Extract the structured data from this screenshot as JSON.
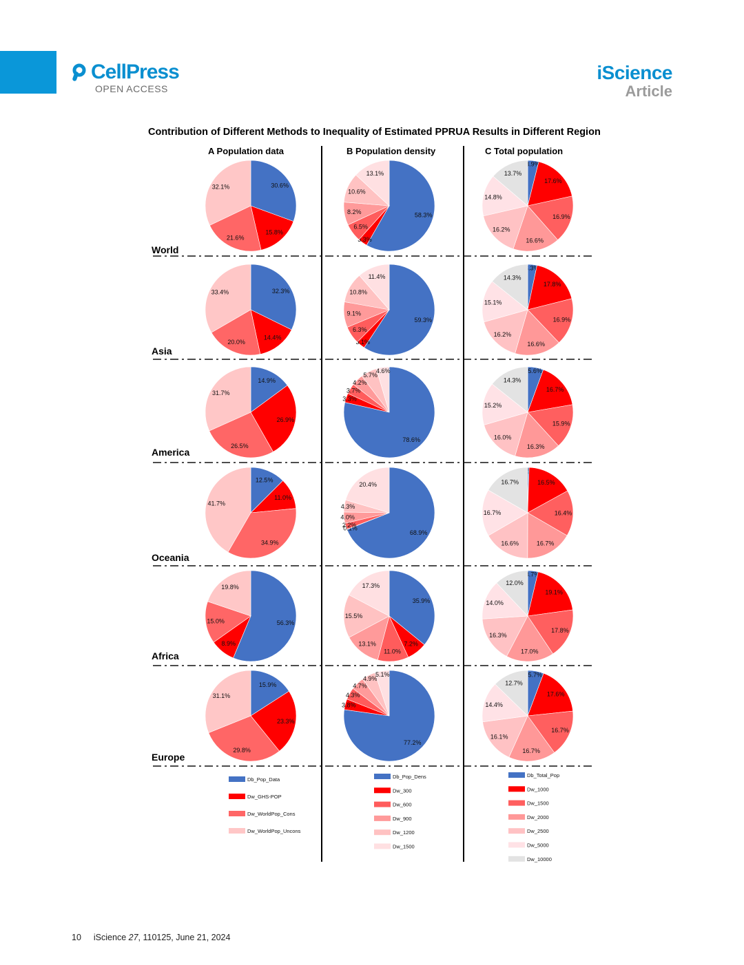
{
  "journal": {
    "brand": "CellPress",
    "access": "OPEN ACCESS",
    "name": "iScience",
    "type": "Article"
  },
  "footer": {
    "page": "10",
    "citation_prefix": "iScience ",
    "volume": "27",
    "citation_rest": ", 110125, June 21, 2024"
  },
  "figure": {
    "title": "Contribution of Different Methods to Inequality of Estimated PPRUA Results in Different Region"
  },
  "chart_data": [
    {
      "type": "pie",
      "panel": "A",
      "title": "Population data",
      "legend_position": "bottom",
      "series_names": [
        "Db_Pop_Data",
        "Dw_GHS-POP",
        "Dw_WorldPop_Cons",
        "Dw_WorldPop_Uncons"
      ],
      "colors": [
        "#4472c4",
        "#ff0000",
        "#ff6666",
        "#ffc7c7"
      ],
      "regions": [
        {
          "region": "World",
          "values": [
            30.6,
            15.8,
            21.6,
            32.1
          ]
        },
        {
          "region": "Asia",
          "values": [
            32.3,
            14.4,
            20.0,
            33.4
          ]
        },
        {
          "region": "America",
          "values": [
            14.9,
            26.9,
            26.5,
            31.7
          ]
        },
        {
          "region": "Oceania",
          "values": [
            12.5,
            11.0,
            34.9,
            41.7
          ]
        },
        {
          "region": "Africa",
          "values": [
            56.3,
            8.9,
            15.0,
            19.8
          ]
        },
        {
          "region": "Europe",
          "values": [
            15.9,
            23.3,
            29.8,
            31.1
          ]
        }
      ]
    },
    {
      "type": "pie",
      "panel": "B",
      "title": "Population density",
      "legend_position": "bottom",
      "series_names": [
        "Db_Pop_Dens",
        "Dw_300",
        "Dw_600",
        "Dw_900",
        "Dw_1200",
        "Dw_1500"
      ],
      "colors": [
        "#4472c4",
        "#ff0000",
        "#ff5c5c",
        "#ff9a9a",
        "#ffc2c2",
        "#ffe0e2"
      ],
      "regions": [
        {
          "region": "World",
          "values": [
            58.3,
            3.3,
            6.5,
            8.2,
            10.6,
            13.1
          ]
        },
        {
          "region": "Asia",
          "values": [
            59.3,
            3.1,
            6.3,
            9.1,
            10.8,
            11.4
          ]
        },
        {
          "region": "America",
          "values": [
            78.6,
            3.3,
            3.7,
            4.2,
            5.7,
            4.6
          ]
        },
        {
          "region": "Oceania",
          "values": [
            68.9,
            0.1,
            2.2,
            4.0,
            4.3,
            20.4
          ]
        },
        {
          "region": "Africa",
          "values": [
            35.9,
            7.2,
            11.0,
            13.1,
            15.5,
            17.3
          ]
        },
        {
          "region": "Europe",
          "values": [
            77.2,
            3.8,
            4.3,
            4.7,
            4.9,
            5.1
          ]
        }
      ]
    },
    {
      "type": "pie",
      "panel": "C",
      "title": "Total population",
      "legend_position": "bottom",
      "series_names": [
        "Db_Total_Pop",
        "Dw_1000",
        "Dw_1500",
        "Dw_2000",
        "Dw_2500",
        "Dw_5000",
        "Dw_10000"
      ],
      "colors": [
        "#4472c4",
        "#ff0000",
        "#ff5f5f",
        "#ff9898",
        "#ffc2c4",
        "#ffe2e6",
        "#e3e3e3"
      ],
      "regions": [
        {
          "region": "World",
          "values": [
            3.9,
            17.6,
            16.9,
            16.6,
            16.2,
            14.8,
            13.7
          ]
        },
        {
          "region": "Asia",
          "values": [
            3.3,
            17.8,
            16.9,
            16.6,
            16.2,
            15.1,
            14.3
          ]
        },
        {
          "region": "America",
          "values": [
            5.6,
            16.7,
            15.9,
            16.3,
            16.0,
            15.2,
            14.3
          ]
        },
        {
          "region": "Oceania",
          "values": [
            0.5,
            16.5,
            16.4,
            16.7,
            16.6,
            16.7,
            16.7
          ]
        },
        {
          "region": "Africa",
          "values": [
            3.7,
            19.1,
            17.8,
            17.0,
            16.3,
            14.0,
            12.0
          ]
        },
        {
          "region": "Europe",
          "values": [
            5.7,
            17.6,
            16.7,
            16.7,
            16.1,
            14.4,
            12.7
          ]
        }
      ]
    }
  ]
}
